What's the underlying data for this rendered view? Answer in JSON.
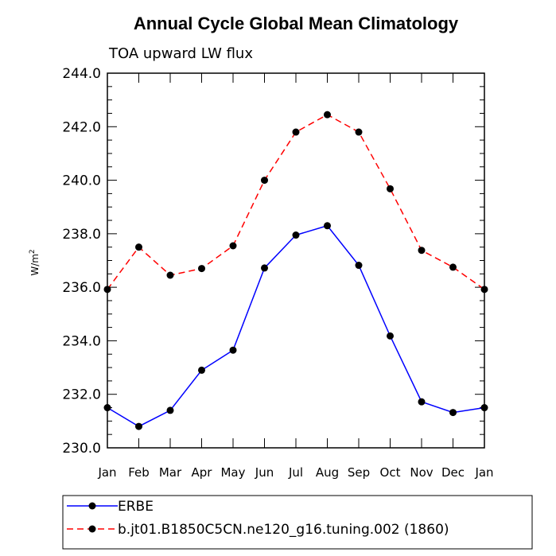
{
  "chart_data": {
    "type": "line",
    "title": "Annual Cycle Global Mean Climatology",
    "subtitle": "TOA upward LW flux",
    "ylabel": "W/m",
    "ylabel_sup": "2",
    "xlabel": "",
    "categories": [
      "Jan",
      "Feb",
      "Mar",
      "Apr",
      "May",
      "Jun",
      "Jul",
      "Aug",
      "Sep",
      "Oct",
      "Nov",
      "Dec",
      "Jan"
    ],
    "ylim": [
      230.0,
      244.0
    ],
    "yticks": [
      "230.0",
      "232.0",
      "234.0",
      "236.0",
      "238.0",
      "240.0",
      "242.0",
      "244.0"
    ],
    "grid": false,
    "legend_position": "bottom",
    "series": [
      {
        "name": "ERBE",
        "color": "#0000ff",
        "dash": "solid",
        "values": [
          231.5,
          230.8,
          231.4,
          232.9,
          233.65,
          236.72,
          237.95,
          238.3,
          236.82,
          234.18,
          231.72,
          231.32,
          231.5
        ]
      },
      {
        "name": "b.jt01.B1850C5CN.ne120_g16.tuning.002 (1860)",
        "color": "#ff0000",
        "dash": "dashed",
        "values": [
          235.92,
          237.5,
          236.45,
          236.7,
          237.55,
          240.0,
          241.8,
          242.45,
          241.8,
          239.68,
          237.38,
          236.75,
          235.92
        ]
      }
    ]
  }
}
